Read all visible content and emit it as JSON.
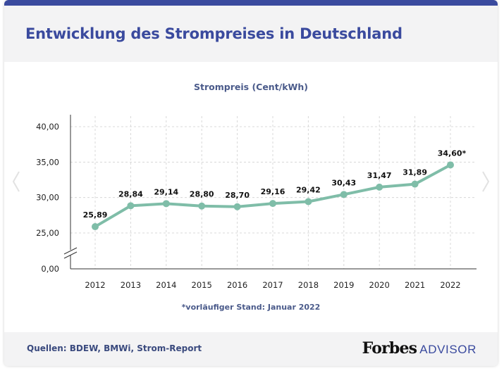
{
  "header": {
    "title": "Entwicklung des Strompreises in Deutschland"
  },
  "footer": {
    "sources": "Quellen: BDEW, BMWi, Strom-Report",
    "logo_main": "Forbes",
    "logo_sub": "ADVISOR"
  },
  "colors": {
    "brand": "#3a4a9e",
    "line": "#7fbda8",
    "grid": "#d8d8d8"
  },
  "chart_data": {
    "type": "line",
    "title": "Strompreis (Cent/kWh)",
    "footnote": "*vorläufiger Stand: Januar 2022",
    "xlabel": "",
    "ylabel": "",
    "categories": [
      "2012",
      "2013",
      "2014",
      "2015",
      "2016",
      "2017",
      "2018",
      "2019",
      "2020",
      "2021",
      "2022"
    ],
    "values": [
      25.89,
      28.84,
      29.14,
      28.8,
      28.7,
      29.16,
      29.42,
      30.43,
      31.47,
      31.89,
      34.6
    ],
    "value_labels": [
      "25,89",
      "28,84",
      "29,14",
      "28,80",
      "28,70",
      "29,16",
      "29,42",
      "30,43",
      "31,47",
      "31,89",
      "34,60*"
    ],
    "y_ticks": [
      0,
      25,
      30,
      35,
      40
    ],
    "y_tick_labels": [
      "0,00",
      "25,00",
      "30,00",
      "35,00",
      "40,00"
    ],
    "y_broken_axis": true,
    "ylim": [
      0,
      40
    ],
    "grid": true
  }
}
